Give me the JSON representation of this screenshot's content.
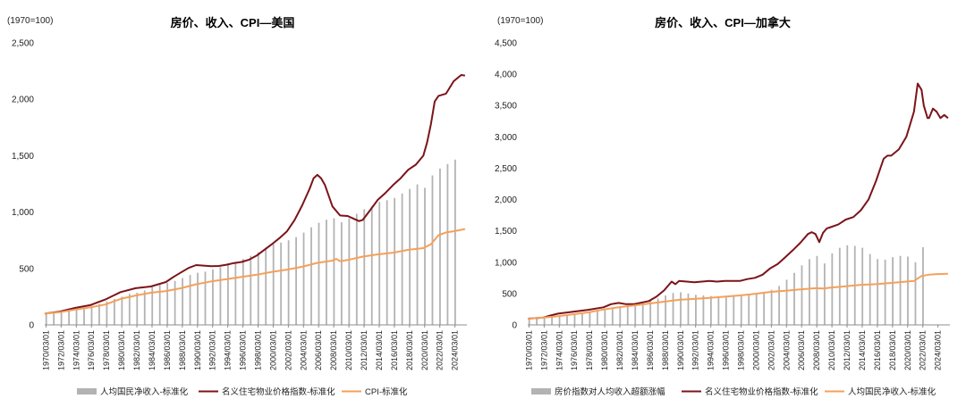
{
  "chart_data": [
    {
      "type": "bar+line",
      "title": "房价、收入、CPI—美国",
      "unit_label": "(1970=100)",
      "ylim": [
        0,
        2500
      ],
      "yticks": [
        "0",
        "500",
        "1,000",
        "1,500",
        "2,000",
        "2,500"
      ],
      "ytick_values": [
        0,
        500,
        1000,
        1500,
        2000,
        2500
      ],
      "x_range": [
        1970.0,
        2025.75
      ],
      "xticks": [
        "1970/03/01",
        "1972/03/01",
        "1974/03/01",
        "1976/03/01",
        "1978/03/01",
        "1980/03/01",
        "1982/03/01",
        "1984/03/01",
        "1986/03/01",
        "1988/03/01",
        "1990/03/01",
        "1992/03/01",
        "1994/03/01",
        "1996/03/01",
        "1998/03/01",
        "2000/03/01",
        "2002/03/01",
        "2004/03/01",
        "2006/03/01",
        "2008/03/01",
        "2010/03/01",
        "2012/03/01",
        "2014/03/01",
        "2016/03/01",
        "2018/03/01",
        "2020/03/01",
        "2022/03/01",
        "2024/03/01"
      ],
      "series": [
        {
          "name": "人均国民净收入-标准化",
          "kind": "bar",
          "color": "#b3b3b3",
          "x": [
            1970,
            1971,
            1972,
            1973,
            1974,
            1975,
            1976,
            1977,
            1978,
            1979,
            1980,
            1981,
            1982,
            1983,
            1984,
            1985,
            1986,
            1987,
            1988,
            1989,
            1990,
            1991,
            1992,
            1993,
            1994,
            1995,
            1996,
            1997,
            1998,
            1999,
            2000,
            2001,
            2002,
            2003,
            2004,
            2005,
            2006,
            2007,
            2008,
            2009,
            2010,
            2011,
            2012,
            2013,
            2014,
            2015,
            2016,
            2017,
            2018,
            2019,
            2020,
            2021,
            2022,
            2023,
            2024
          ],
          "values": [
            100,
            106,
            116,
            130,
            140,
            152,
            168,
            186,
            208,
            230,
            250,
            275,
            286,
            305,
            335,
            355,
            372,
            390,
            415,
            442,
            462,
            472,
            492,
            512,
            538,
            560,
            585,
            612,
            645,
            685,
            715,
            730,
            750,
            778,
            818,
            865,
            905,
            932,
            945,
            910,
            945,
            985,
            1025,
            1050,
            1090,
            1105,
            1125,
            1165,
            1205,
            1245,
            1215,
            1325,
            1385,
            1425,
            1465
          ]
        },
        {
          "name": "名义住宅物业价格指数-标准化",
          "kind": "line",
          "color": "#7b1419",
          "x": [
            1970,
            1972,
            1974,
            1976,
            1977,
            1978,
            1980,
            1982,
            1984,
            1986,
            1987,
            1988,
            1989,
            1990,
            1991,
            1992,
            1993,
            1994,
            1995,
            1996,
            1997,
            1998,
            1999,
            2000,
            2001,
            2002,
            2003,
            2004,
            2005,
            2005.5,
            2006,
            2006.5,
            2007,
            2008,
            2009,
            2010,
            2011,
            2011.5,
            2012,
            2013,
            2014,
            2015,
            2016,
            2017,
            2018,
            2019,
            2020,
            2020.5,
            2021,
            2021.5,
            2022,
            2023,
            2024,
            2025,
            2025.5
          ],
          "values": [
            100,
            118,
            150,
            175,
            200,
            225,
            290,
            325,
            340,
            380,
            425,
            465,
            505,
            530,
            525,
            520,
            522,
            533,
            548,
            558,
            578,
            615,
            665,
            715,
            770,
            830,
            930,
            1060,
            1210,
            1300,
            1330,
            1300,
            1240,
            1050,
            970,
            965,
            935,
            920,
            930,
            1020,
            1110,
            1170,
            1240,
            1300,
            1375,
            1420,
            1500,
            1620,
            1780,
            1980,
            2030,
            2050,
            2160,
            2215,
            2210
          ]
        },
        {
          "name": "CPI-标准化",
          "kind": "line",
          "color": "#f5a05a",
          "x": [
            1970,
            1972,
            1974,
            1976,
            1978,
            1980,
            1982,
            1984,
            1986,
            1988,
            1990,
            1992,
            1994,
            1996,
            1998,
            2000,
            2002,
            2004,
            2006,
            2008,
            2008.5,
            2009,
            2010,
            2012,
            2014,
            2016,
            2018,
            2020,
            2021,
            2022,
            2023,
            2024,
            2025.5
          ],
          "values": [
            100,
            112,
            135,
            155,
            180,
            230,
            260,
            285,
            300,
            325,
            360,
            385,
            405,
            425,
            445,
            470,
            490,
            515,
            550,
            570,
            585,
            565,
            575,
            605,
            625,
            640,
            665,
            680,
            715,
            795,
            820,
            830,
            850
          ]
        }
      ]
    },
    {
      "type": "bar+line",
      "title": "房价、收入、CPI—加拿大",
      "unit_label": "(1970=100)",
      "ylim": [
        0,
        4500
      ],
      "yticks": [
        "0",
        "500",
        "1,000",
        "1,500",
        "2,000",
        "2,500",
        "3,000",
        "3,500",
        "4,000",
        "4,500"
      ],
      "ytick_values": [
        0,
        500,
        1000,
        1500,
        2000,
        2500,
        3000,
        3500,
        4000,
        4500
      ],
      "x_range": [
        1970.0,
        2025.75
      ],
      "xticks": [
        "1970/03/01",
        "1972/03/01",
        "1974/03/01",
        "1976/03/01",
        "1978/03/01",
        "1980/03/01",
        "1982/03/01",
        "1984/03/01",
        "1986/03/01",
        "1988/03/01",
        "1990/03/01",
        "1992/03/01",
        "1994/03/01",
        "1996/03/01",
        "1998/03/01",
        "2000/03/01",
        "2002/03/01",
        "2004/03/01",
        "2006/03/01",
        "2008/03/01",
        "2010/03/01",
        "2012/03/01",
        "2014/03/01",
        "2016/03/01",
        "2018/03/01",
        "2020/03/01",
        "2022/03/01",
        "2024/03/01"
      ],
      "series": [
        {
          "name": "房价指数对人均收入超额涨幅",
          "kind": "bar",
          "color": "#b3b3b3",
          "x": [
            1970,
            1971,
            1972,
            1973,
            1974,
            1975,
            1976,
            1977,
            1978,
            1979,
            1980,
            1981,
            1982,
            1983,
            1984,
            1985,
            1986,
            1987,
            1988,
            1989,
            1990,
            1991,
            1992,
            1993,
            1994,
            1995,
            1996,
            1997,
            1998,
            1999,
            2000,
            2001,
            2002,
            2003,
            2004,
            2005,
            2006,
            2007,
            2008,
            2009,
            2010,
            2011,
            2012,
            2013,
            2014,
            2015,
            2016,
            2017,
            2018,
            2019,
            2020,
            2021,
            2022
          ],
          "values": [
            100,
            105,
            112,
            125,
            150,
            165,
            180,
            200,
            210,
            225,
            245,
            265,
            285,
            300,
            320,
            345,
            385,
            420,
            470,
            510,
            520,
            500,
            480,
            470,
            460,
            450,
            455,
            460,
            470,
            480,
            500,
            510,
            560,
            620,
            720,
            830,
            950,
            1050,
            1100,
            980,
            1140,
            1230,
            1270,
            1260,
            1230,
            1130,
            1050,
            1040,
            1080,
            1100,
            1090,
            1000,
            1240
          ]
        },
        {
          "name": "名义住宅物业价格指数-标准化",
          "kind": "line",
          "color": "#7b1419",
          "x": [
            1970,
            1972,
            1973,
            1974,
            1976,
            1978,
            1980,
            1981,
            1982,
            1983,
            1984,
            1986,
            1987,
            1988,
            1989,
            1989.5,
            1990,
            1991,
            1992,
            1993,
            1994,
            1995,
            1996,
            1997,
            1998,
            1999,
            2000,
            2001,
            2002,
            2003,
            2004,
            2005,
            2006,
            2007,
            2007.5,
            2008,
            2008.5,
            2009,
            2009.5,
            2010,
            2011,
            2012,
            2013,
            2014,
            2015,
            2016,
            2017,
            2017.5,
            2018,
            2019,
            2020,
            2021,
            2021.5,
            2022,
            2022.3,
            2022.8,
            2023,
            2023.5,
            2024,
            2024.5,
            2025,
            2025.5
          ],
          "values": [
            100,
            115,
            150,
            180,
            210,
            240,
            280,
            330,
            350,
            330,
            330,
            380,
            450,
            550,
            690,
            650,
            700,
            690,
            680,
            690,
            700,
            690,
            700,
            700,
            700,
            730,
            750,
            800,
            900,
            970,
            1080,
            1190,
            1310,
            1450,
            1480,
            1450,
            1320,
            1470,
            1540,
            1560,
            1600,
            1680,
            1720,
            1830,
            2000,
            2300,
            2650,
            2700,
            2700,
            2800,
            3000,
            3400,
            3850,
            3750,
            3500,
            3300,
            3300,
            3450,
            3400,
            3300,
            3350,
            3300
          ]
        },
        {
          "name": "人均国民净收入-标准化",
          "kind": "line",
          "color": "#f5a05a",
          "x": [
            1970,
            1972,
            1974,
            1976,
            1978,
            1980,
            1982,
            1984,
            1986,
            1988,
            1990,
            1992,
            1994,
            1996,
            1998,
            2000,
            2002,
            2004,
            2006,
            2008,
            2009,
            2010,
            2012,
            2014,
            2016,
            2018,
            2020,
            2021,
            2022,
            2023,
            2024,
            2025.5
          ],
          "values": [
            100,
            115,
            140,
            170,
            200,
            245,
            280,
            310,
            340,
            370,
            400,
            415,
            430,
            450,
            470,
            495,
            525,
            545,
            565,
            585,
            580,
            595,
            615,
            640,
            650,
            670,
            690,
            700,
            780,
            800,
            810,
            815
          ]
        }
      ]
    }
  ],
  "legends": [
    [
      "人均国民净收入-标准化",
      "名义住宅物业价格指数-标准化",
      "CPI-标准化"
    ],
    [
      "房价指数对人均收入超额涨幅",
      "名义住宅物业价格指数-标准化",
      "人均国民净收入-标准化"
    ]
  ]
}
